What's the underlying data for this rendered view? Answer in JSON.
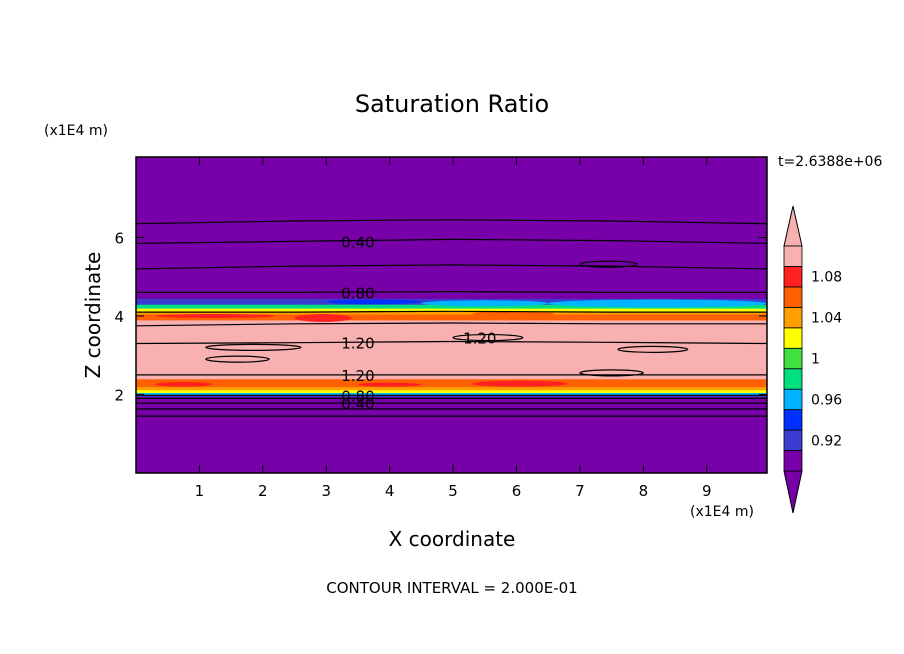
{
  "chart_data": {
    "type": "heatmap",
    "title": "Saturation Ratio",
    "time_label": "t=2.6388e+06",
    "xlabel": "X coordinate",
    "ylabel": "Z coordinate",
    "x_unit": "(x1E4 m)",
    "y_unit": "(x1E4 m)",
    "footer": "CONTOUR INTERVAL = 2.000E-01",
    "xlim": [
      0,
      9.95
    ],
    "ylim": [
      0,
      8.05
    ],
    "x_ticks": [
      "1",
      "2",
      "3",
      "4",
      "5",
      "6",
      "7",
      "8",
      "9"
    ],
    "y_ticks": [
      "2",
      "4",
      "6"
    ],
    "colorbar": {
      "labels": [
        "1.08",
        "1.04",
        "1",
        "0.96",
        "0.92"
      ],
      "levels": [
        0.9,
        0.92,
        0.94,
        0.96,
        0.98,
        1.0,
        1.02,
        1.04,
        1.06,
        1.08,
        1.1
      ],
      "colors": [
        "#7700a8",
        "#3c3cd0",
        "#0030ff",
        "#00b4ff",
        "#00e080",
        "#40e040",
        "#ffff00",
        "#ffa000",
        "#ff6000",
        "#ff2020",
        "#f8b0b0"
      ]
    },
    "bands": [
      {
        "z0": 0.0,
        "z1": 1.95,
        "color": "#7700a8"
      },
      {
        "z0": 1.95,
        "z1": 2.0,
        "color": "#3c3cd0"
      },
      {
        "z0": 2.0,
        "z1": 2.05,
        "color": "#00b4ff"
      },
      {
        "z0": 2.05,
        "z1": 2.12,
        "color": "#ffff00"
      },
      {
        "z0": 2.12,
        "z1": 2.2,
        "color": "#ffa000"
      },
      {
        "z0": 2.2,
        "z1": 2.4,
        "color": "#ff6000"
      },
      {
        "z0": 2.4,
        "z1": 3.9,
        "color": "#f8b0b0"
      },
      {
        "z0": 3.9,
        "z1": 4.05,
        "color": "#ff6000"
      },
      {
        "z0": 4.05,
        "z1": 4.12,
        "color": "#ffa000"
      },
      {
        "z0": 4.12,
        "z1": 4.2,
        "color": "#ffff00"
      },
      {
        "z0": 4.2,
        "z1": 4.3,
        "color": "#00e080"
      },
      {
        "z0": 4.3,
        "z1": 4.45,
        "color": "#3c3cd0"
      },
      {
        "z0": 4.45,
        "z1": 8.05,
        "color": "#7700a8"
      }
    ],
    "patches": [
      {
        "x0": 2.5,
        "x1": 3.4,
        "z0": 3.85,
        "z1": 4.05,
        "color": "#ff2020"
      },
      {
        "x0": 0.3,
        "x1": 2.2,
        "z0": 3.95,
        "z1": 4.05,
        "color": "#ff2020"
      },
      {
        "x0": 5.3,
        "x1": 6.6,
        "z0": 4.0,
        "z1": 4.12,
        "color": "#ff6000"
      },
      {
        "x0": 0.3,
        "x1": 1.2,
        "z0": 2.2,
        "z1": 2.32,
        "color": "#ff2020"
      },
      {
        "x0": 5.3,
        "x1": 6.8,
        "z0": 2.2,
        "z1": 2.35,
        "color": "#ff2020"
      },
      {
        "x0": 3.5,
        "x1": 4.5,
        "z0": 2.2,
        "z1": 2.3,
        "color": "#ff2020"
      },
      {
        "x0": 6.5,
        "x1": 9.95,
        "z0": 4.22,
        "z1": 4.42,
        "color": "#00b4ff"
      },
      {
        "x0": 4.5,
        "x1": 6.5,
        "z0": 4.25,
        "z1": 4.4,
        "color": "#00b4ff"
      },
      {
        "x0": 3.0,
        "x1": 4.5,
        "z0": 4.3,
        "z1": 4.42,
        "color": "#0030ff"
      }
    ],
    "contours": [
      {
        "z": [
          1.45,
          1.45,
          1.45,
          1.45,
          1.45
        ]
      },
      {
        "z": [
          1.63,
          1.63,
          1.63,
          1.63,
          1.63
        ]
      },
      {
        "z": [
          1.78,
          1.78,
          1.78,
          1.78,
          1.78
        ],
        "label": "0.40",
        "label_x": 3.5
      },
      {
        "z": [
          1.9,
          1.9,
          1.9,
          1.9,
          1.9
        ]
      },
      {
        "z": [
          1.98,
          1.98,
          1.98,
          1.98,
          1.98
        ],
        "label": "0.80",
        "label_x": 3.5
      },
      {
        "z": [
          2.5,
          2.5,
          2.5,
          2.5,
          2.5
        ],
        "label": "1.20",
        "label_x": 3.5
      },
      {
        "z": [
          3.3,
          3.32,
          3.35,
          3.33,
          3.3
        ],
        "label": "1.20",
        "label_x": 3.5
      },
      {
        "z": [
          3.75,
          3.8,
          3.82,
          3.8,
          3.8
        ]
      },
      {
        "z": [
          4.1,
          4.1,
          4.12,
          4.1,
          4.1
        ]
      },
      {
        "z": [
          4.6,
          4.6,
          4.62,
          4.6,
          4.6
        ],
        "label": "0.80",
        "label_x": 3.5
      },
      {
        "z": [
          5.2,
          5.27,
          5.3,
          5.27,
          5.2
        ]
      },
      {
        "z": [
          5.85,
          5.9,
          5.95,
          5.92,
          5.85
        ],
        "label": "0.40",
        "label_x": 3.5
      },
      {
        "z": [
          6.35,
          6.42,
          6.45,
          6.42,
          6.35
        ]
      }
    ],
    "islands": [
      {
        "x0": 1.1,
        "x1": 2.6,
        "z": 3.2
      },
      {
        "x0": 1.1,
        "x1": 2.1,
        "z": 2.9
      },
      {
        "x0": 5.0,
        "x1": 6.1,
        "z": 3.45,
        "label": "1.20"
      },
      {
        "x0": 7.6,
        "x1": 8.7,
        "z": 3.15
      },
      {
        "x0": 7.0,
        "x1": 8.0,
        "z": 2.55
      },
      {
        "x0": 7.0,
        "x1": 7.9,
        "z": 5.32
      }
    ]
  }
}
